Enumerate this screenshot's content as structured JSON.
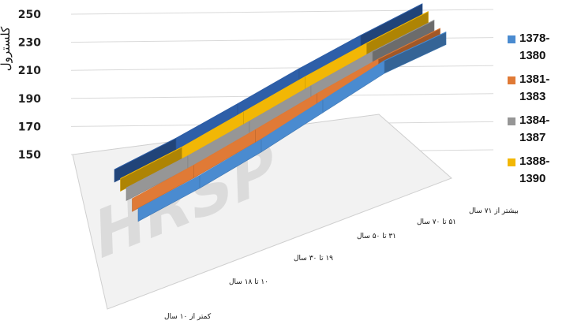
{
  "chart_data": {
    "type": "line",
    "ylabel": "کلسترول",
    "ylim": [
      150,
      250
    ],
    "yticks": [
      "150",
      "170",
      "190",
      "210",
      "230",
      "250"
    ],
    "categories": [
      "کمتر از ۱۰ سال",
      "۱۰ تا ۱۸ سال",
      "۱۹ تا ۳۰ سال",
      "۳۱ تا ۵۰ سال",
      "۵۱ تا ۷۰ سال",
      "بیشتر از ۷۱ سال"
    ],
    "series": [
      {
        "name": "1378-1380",
        "color": "#4a8bd0",
        "values": [
          160,
          166,
          184,
          214,
          244,
          233
        ]
      },
      {
        "name": "1381-1383",
        "color": "#e07a36",
        "values": [
          160,
          168,
          183,
          201,
          213,
          209
        ]
      },
      {
        "name": "1384-1387",
        "color": "#969696",
        "values": [
          164,
          166,
          178,
          193,
          204,
          203
        ]
      },
      {
        "name": "1388-1390",
        "color": "#f2b705",
        "values": [
          162,
          162,
          176,
          190,
          198,
          198
        ]
      },
      {
        "name": "",
        "color": "#2e5fa8",
        "values": [
          159,
          158,
          169,
          183,
          190,
          190
        ]
      }
    ],
    "legend_position": "right",
    "watermark": "HRSP"
  }
}
